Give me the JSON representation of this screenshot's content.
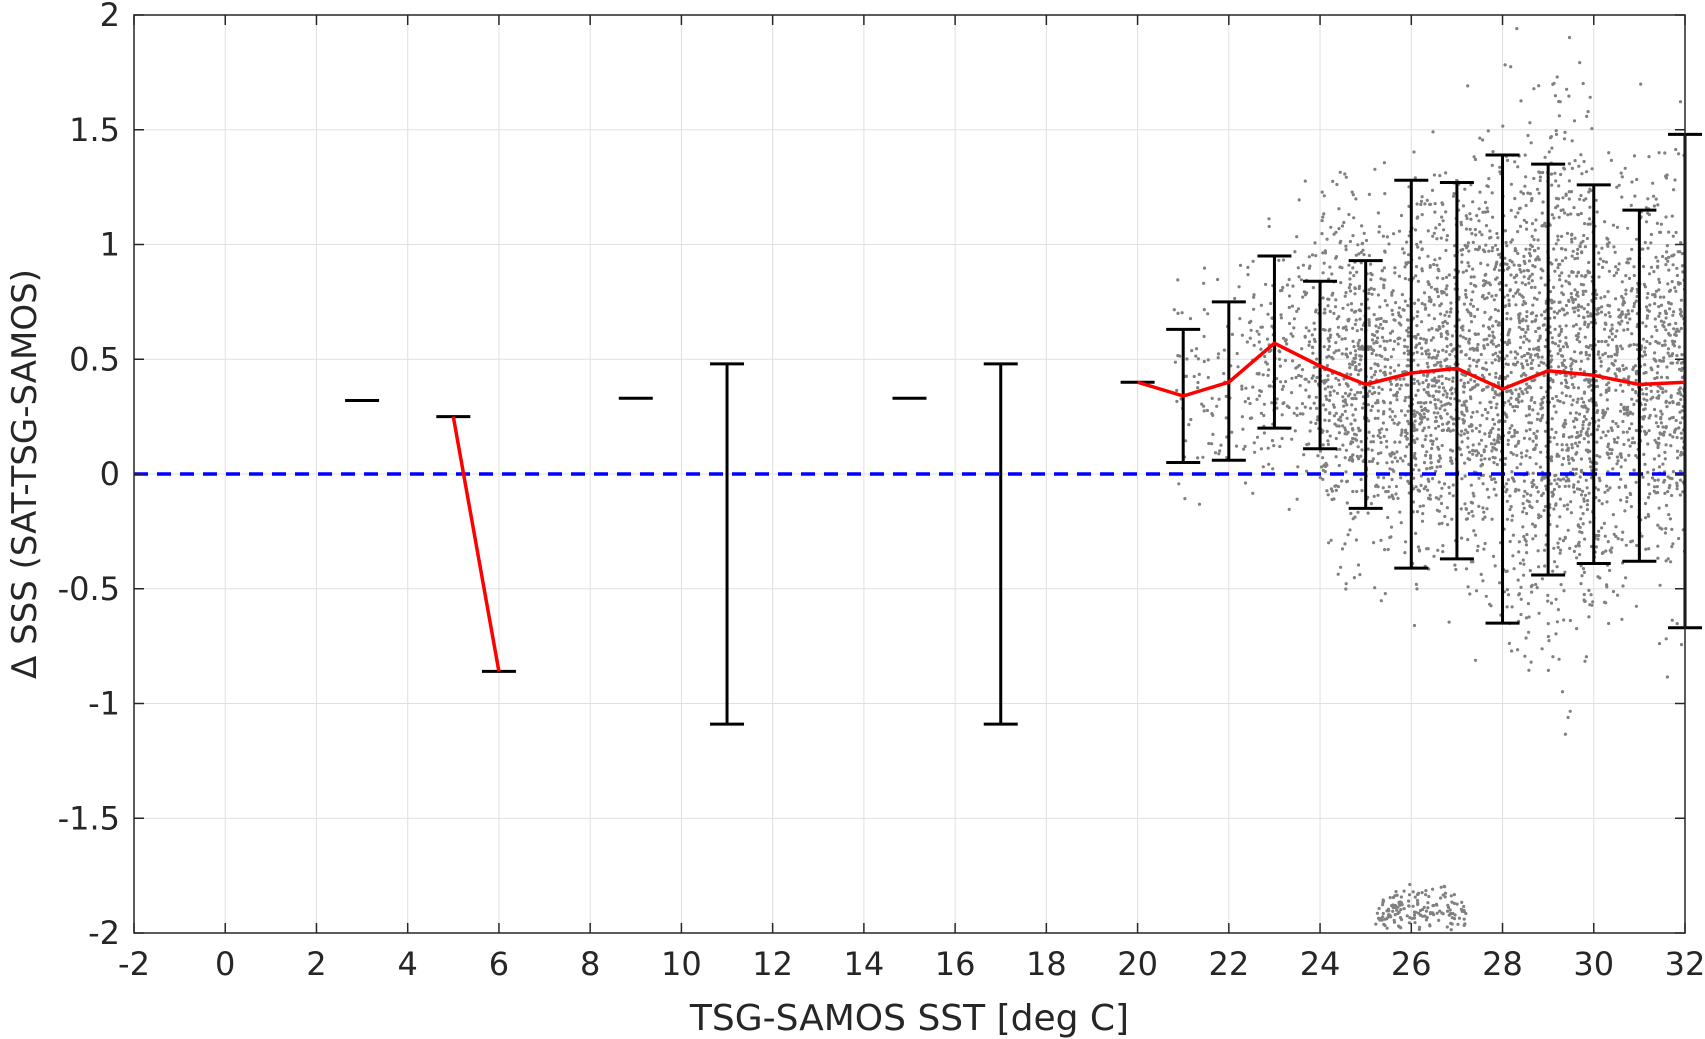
{
  "chart_data": {
    "type": "scatter",
    "title": "",
    "xlabel": "TSG-SAMOS SST [deg C]",
    "ylabel": "Δ SSS (SAT-TSG-SAMOS)",
    "xlim": [
      -2,
      32
    ],
    "ylim": [
      -2,
      2
    ],
    "x_ticks": [
      -2,
      0,
      2,
      4,
      6,
      8,
      10,
      12,
      14,
      16,
      18,
      20,
      22,
      24,
      26,
      28,
      30,
      32
    ],
    "y_ticks": [
      -2,
      -1.5,
      -1,
      -0.5,
      0,
      0.5,
      1,
      1.5,
      2
    ],
    "x_tick_labels": [
      "-2",
      "0",
      "2",
      "4",
      "6",
      "8",
      "10",
      "12",
      "14",
      "16",
      "18",
      "20",
      "22",
      "24",
      "26",
      "28",
      "30",
      "32"
    ],
    "y_tick_labels": [
      "-2",
      "-1.5",
      "-1",
      "-0.5",
      "0",
      "0.5",
      "1",
      "1.5",
      "2"
    ],
    "grid": true,
    "colors": {
      "scatter": "#808080",
      "mean_line": "#ff0000",
      "error_bars": "#000000",
      "zero_line": "#0000ff",
      "grid": "#e0e0e0",
      "axes": "#262626"
    },
    "zero_line": {
      "y": 0,
      "style": "dashed"
    },
    "scatter_cloud": {
      "description_x_range": [
        20.5,
        32
      ],
      "clusters": [
        {
          "x_min": 20.8,
          "x_max": 22.4,
          "y_mean": 0.4,
          "y_sd": 0.25,
          "count": 90
        },
        {
          "x_min": 22.4,
          "x_max": 24,
          "y_mean": 0.5,
          "y_sd": 0.28,
          "count": 220
        },
        {
          "x_min": 24,
          "x_max": 26,
          "y_mean": 0.42,
          "y_sd": 0.36,
          "count": 700
        },
        {
          "x_min": 26,
          "x_max": 28,
          "y_mean": 0.44,
          "y_sd": 0.42,
          "count": 900
        },
        {
          "x_min": 28,
          "x_max": 30,
          "y_mean": 0.45,
          "y_sd": 0.55,
          "count": 1100
        },
        {
          "x_min": 30,
          "x_max": 32,
          "y_mean": 0.42,
          "y_sd": 0.45,
          "count": 800
        },
        {
          "x_min": 25.2,
          "x_max": 27.2,
          "y_mean": -1.9,
          "y_sd": 0.05,
          "count": 160
        }
      ]
    },
    "mean_line_segments": [
      {
        "x": [
          5,
          6
        ],
        "y": [
          0.25,
          -0.86
        ]
      },
      {
        "x": [
          20,
          21,
          22,
          23,
          24,
          25,
          26,
          27,
          28,
          29,
          30,
          31,
          32
        ],
        "y": [
          0.4,
          0.34,
          0.4,
          0.57,
          0.47,
          0.39,
          0.44,
          0.46,
          0.37,
          0.45,
          0.43,
          0.39,
          0.4
        ]
      }
    ],
    "error_bars": [
      {
        "x": 3,
        "lower": 0.32,
        "upper": 0.32
      },
      {
        "x": 5,
        "lower": 0.25,
        "upper": 0.25
      },
      {
        "x": 6,
        "lower": -0.86,
        "upper": -0.86
      },
      {
        "x": 9,
        "lower": 0.33,
        "upper": 0.33
      },
      {
        "x": 11,
        "lower": -1.09,
        "upper": 0.48
      },
      {
        "x": 15,
        "lower": 0.33,
        "upper": 0.33
      },
      {
        "x": 17,
        "lower": -1.09,
        "upper": 0.48
      },
      {
        "x": 20,
        "lower": 0.4,
        "upper": 0.4
      },
      {
        "x": 21,
        "lower": 0.05,
        "upper": 0.63
      },
      {
        "x": 22,
        "lower": 0.06,
        "upper": 0.75
      },
      {
        "x": 23,
        "lower": 0.2,
        "upper": 0.95
      },
      {
        "x": 24,
        "lower": 0.11,
        "upper": 0.84
      },
      {
        "x": 25,
        "lower": -0.15,
        "upper": 0.93
      },
      {
        "x": 26,
        "lower": -0.41,
        "upper": 1.28
      },
      {
        "x": 27,
        "lower": -0.37,
        "upper": 1.27
      },
      {
        "x": 28,
        "lower": -0.65,
        "upper": 1.39
      },
      {
        "x": 29,
        "lower": -0.44,
        "upper": 1.35
      },
      {
        "x": 30,
        "lower": -0.39,
        "upper": 1.26
      },
      {
        "x": 31,
        "lower": -0.38,
        "upper": 1.15
      },
      {
        "x": 32,
        "lower": -0.67,
        "upper": 1.48
      }
    ]
  }
}
